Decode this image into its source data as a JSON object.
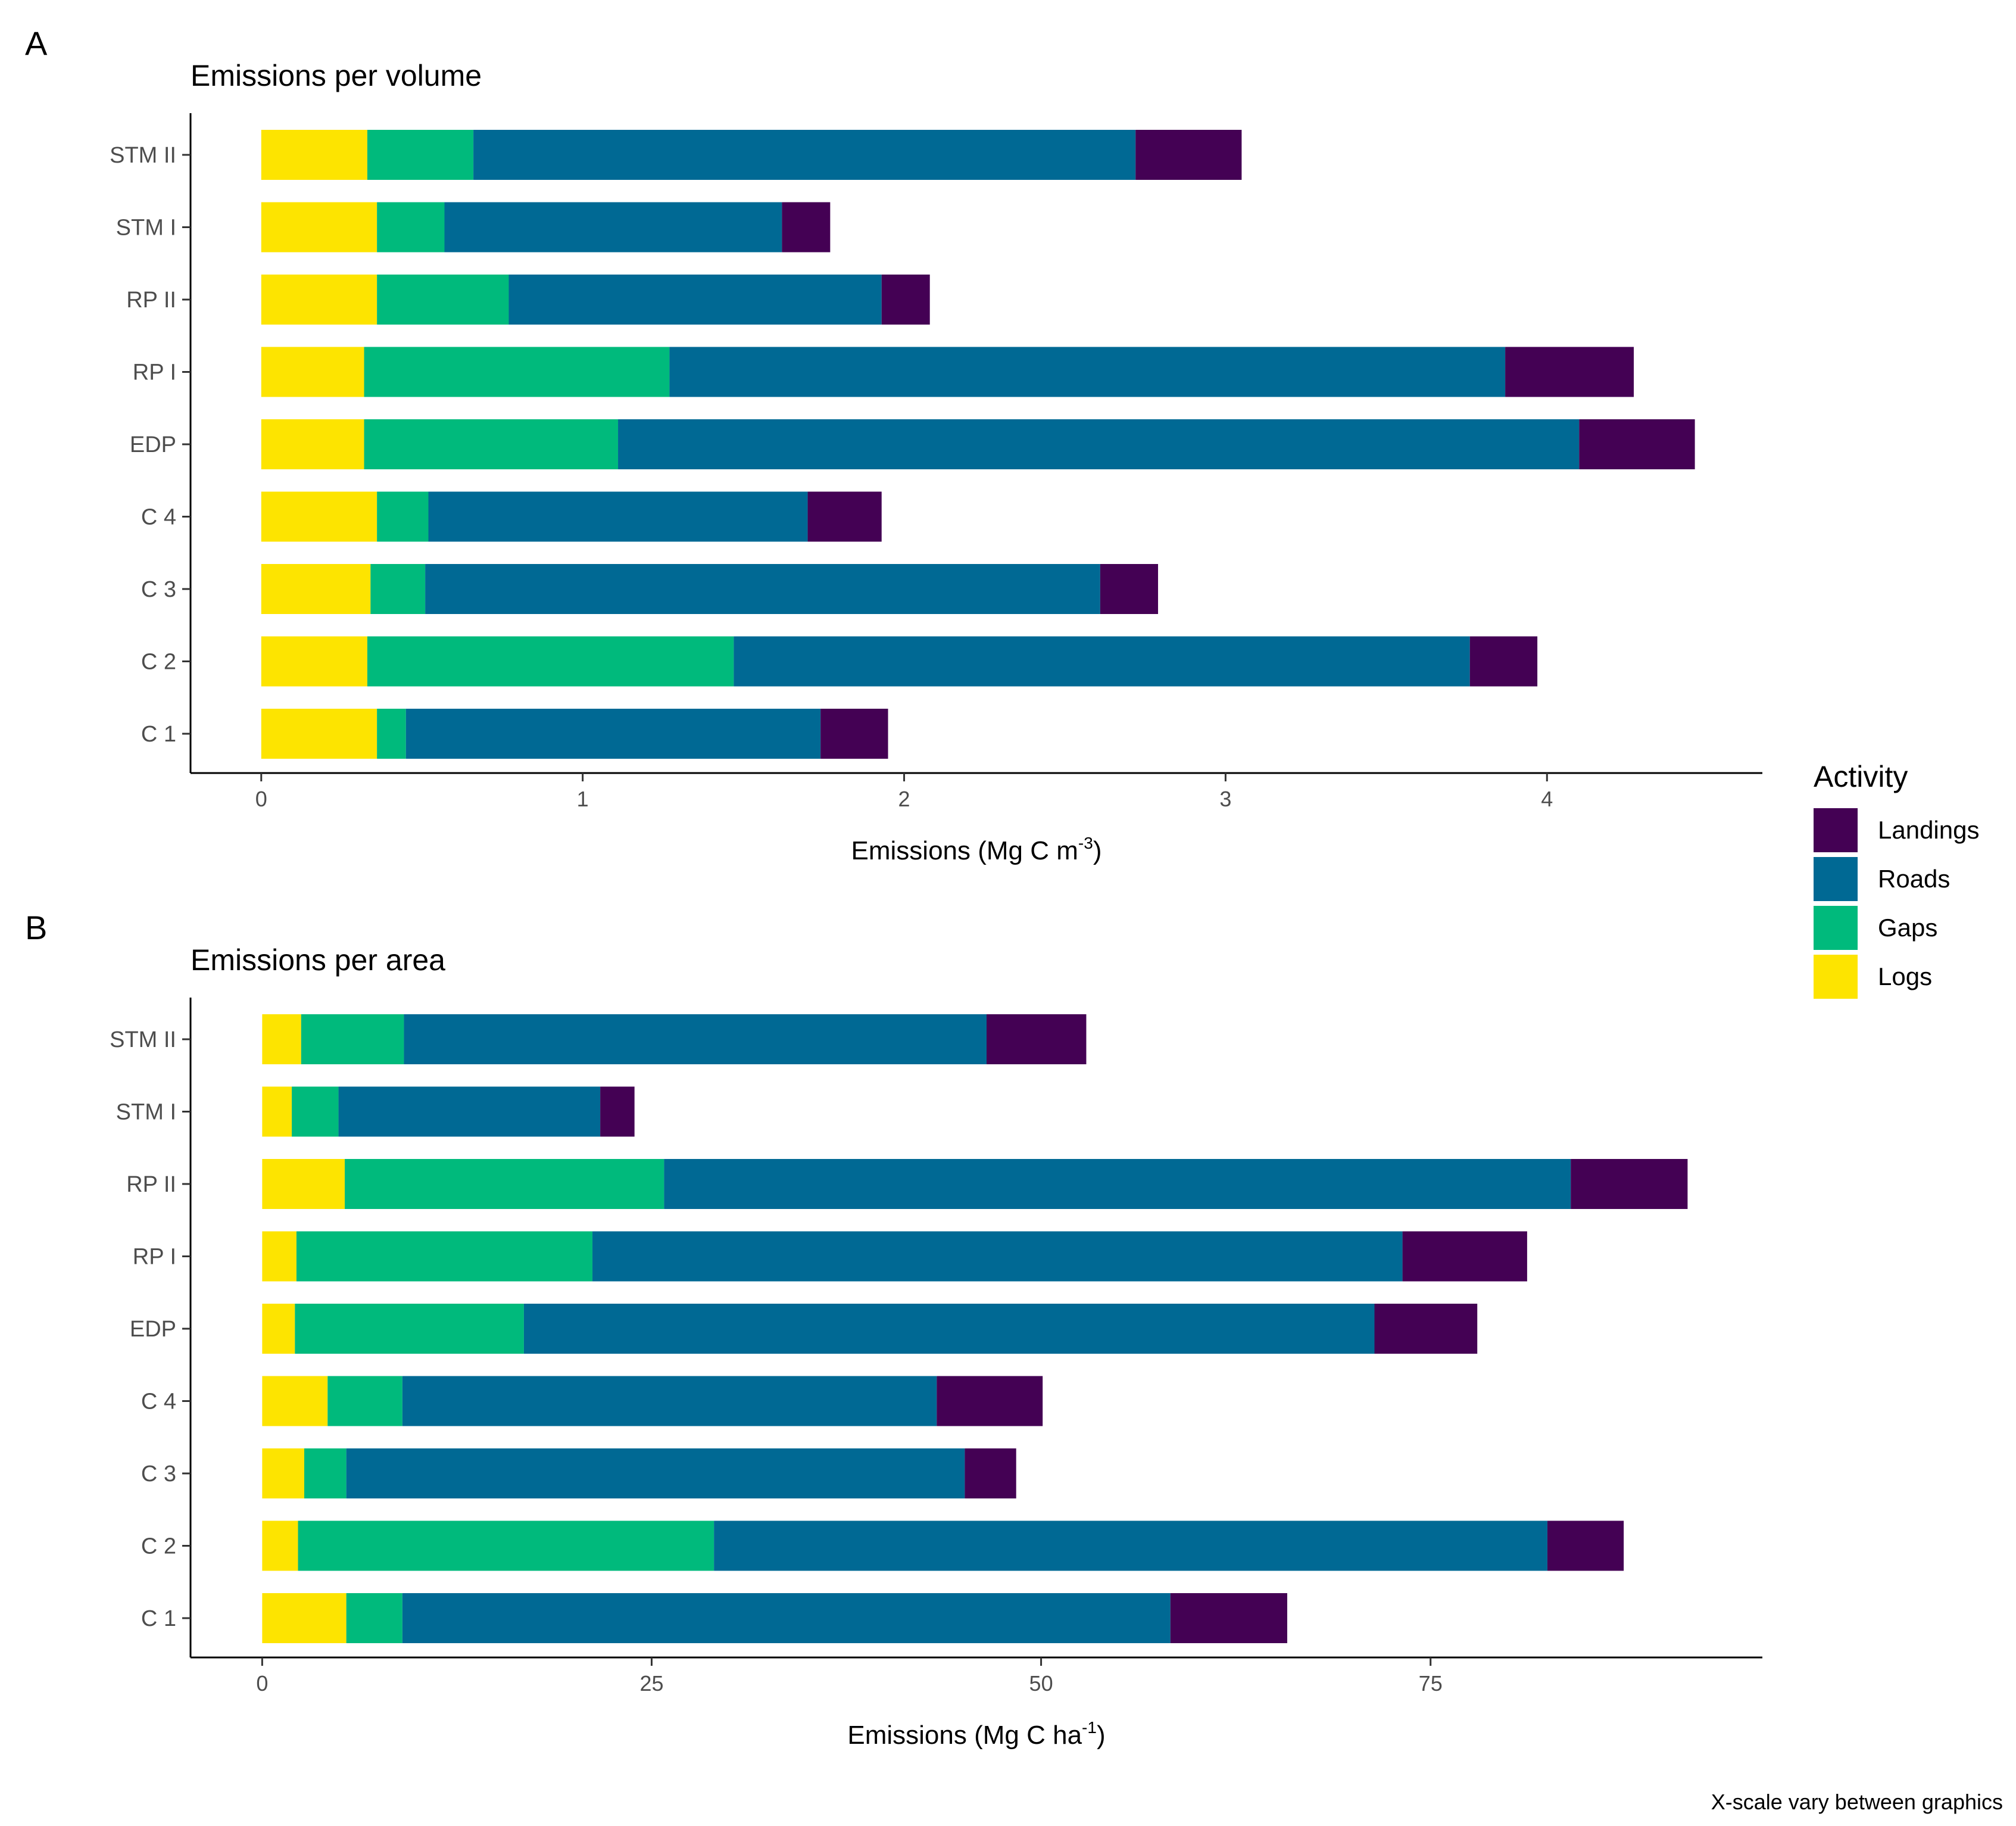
{
  "figure": {
    "footnote": "X-scale vary between graphics",
    "legend": {
      "title": "Activity",
      "items": [
        {
          "key": "landings",
          "label": "Landings",
          "color": "#440154"
        },
        {
          "key": "roads",
          "label": "Roads",
          "color": "#006994"
        },
        {
          "key": "gaps",
          "label": "Gaps",
          "color": "#00BA7C"
        },
        {
          "key": "logs",
          "label": "Logs",
          "color": "#FDE400"
        }
      ]
    },
    "panel_a": {
      "letter": "A",
      "title": "Emissions per volume",
      "xlabel_main": "Emissions (Mg C m",
      "xlabel_sup": "-3",
      "xlabel_end": ")"
    },
    "panel_b": {
      "letter": "B",
      "title": "Emissions per area",
      "xlabel_main": "Emissions (Mg C ha",
      "xlabel_sup": "-1",
      "xlabel_end": ")"
    }
  },
  "chart_data": [
    {
      "type": "bar",
      "orientation": "horizontal",
      "stacked": true,
      "title": "Emissions per volume",
      "xlabel": "Emissions (Mg C m-3)",
      "xlim": [
        -0.22,
        4.67
      ],
      "xticks": [
        0,
        1,
        2,
        3,
        4
      ],
      "categories": [
        "STM II",
        "STM I",
        "RP II",
        "RP I",
        "EDP",
        "C 4",
        "C 3",
        "C 2",
        "C 1"
      ],
      "series": [
        {
          "name": "Logs",
          "values": [
            0.33,
            0.36,
            0.36,
            0.32,
            0.32,
            0.36,
            0.34,
            0.33,
            0.36
          ]
        },
        {
          "name": "Gaps",
          "values": [
            0.33,
            0.21,
            0.41,
            0.95,
            0.79,
            0.16,
            0.17,
            1.14,
            0.09
          ]
        },
        {
          "name": "Roads",
          "values": [
            2.06,
            1.05,
            1.16,
            2.6,
            2.99,
            1.18,
            2.1,
            2.29,
            1.29
          ]
        },
        {
          "name": "Landings",
          "values": [
            0.33,
            0.15,
            0.15,
            0.4,
            0.36,
            0.23,
            0.18,
            0.21,
            0.21
          ]
        }
      ]
    },
    {
      "type": "bar",
      "orientation": "horizontal",
      "stacked": true,
      "title": "Emissions per area",
      "xlabel": "Emissions (Mg C ha-1)",
      "xlim": [
        -4.6,
        96.3
      ],
      "xticks": [
        0,
        25,
        50,
        75
      ],
      "categories": [
        "STM II",
        "STM I",
        "RP II",
        "RP I",
        "EDP",
        "C 4",
        "C 3",
        "C 2",
        "C 1"
      ],
      "series": [
        {
          "name": "Logs",
          "values": [
            2.5,
            1.9,
            5.3,
            2.2,
            2.1,
            4.2,
            2.7,
            2.3,
            5.4
          ]
        },
        {
          "name": "Gaps",
          "values": [
            6.6,
            3.0,
            20.5,
            19.0,
            14.7,
            4.8,
            2.7,
            26.7,
            3.6
          ]
        },
        {
          "name": "Roads",
          "values": [
            37.4,
            16.8,
            58.2,
            52.0,
            54.6,
            34.3,
            39.7,
            53.5,
            49.3
          ]
        },
        {
          "name": "Landings",
          "values": [
            6.4,
            2.2,
            7.5,
            8.0,
            6.6,
            6.8,
            3.3,
            4.9,
            7.5
          ]
        }
      ]
    }
  ]
}
